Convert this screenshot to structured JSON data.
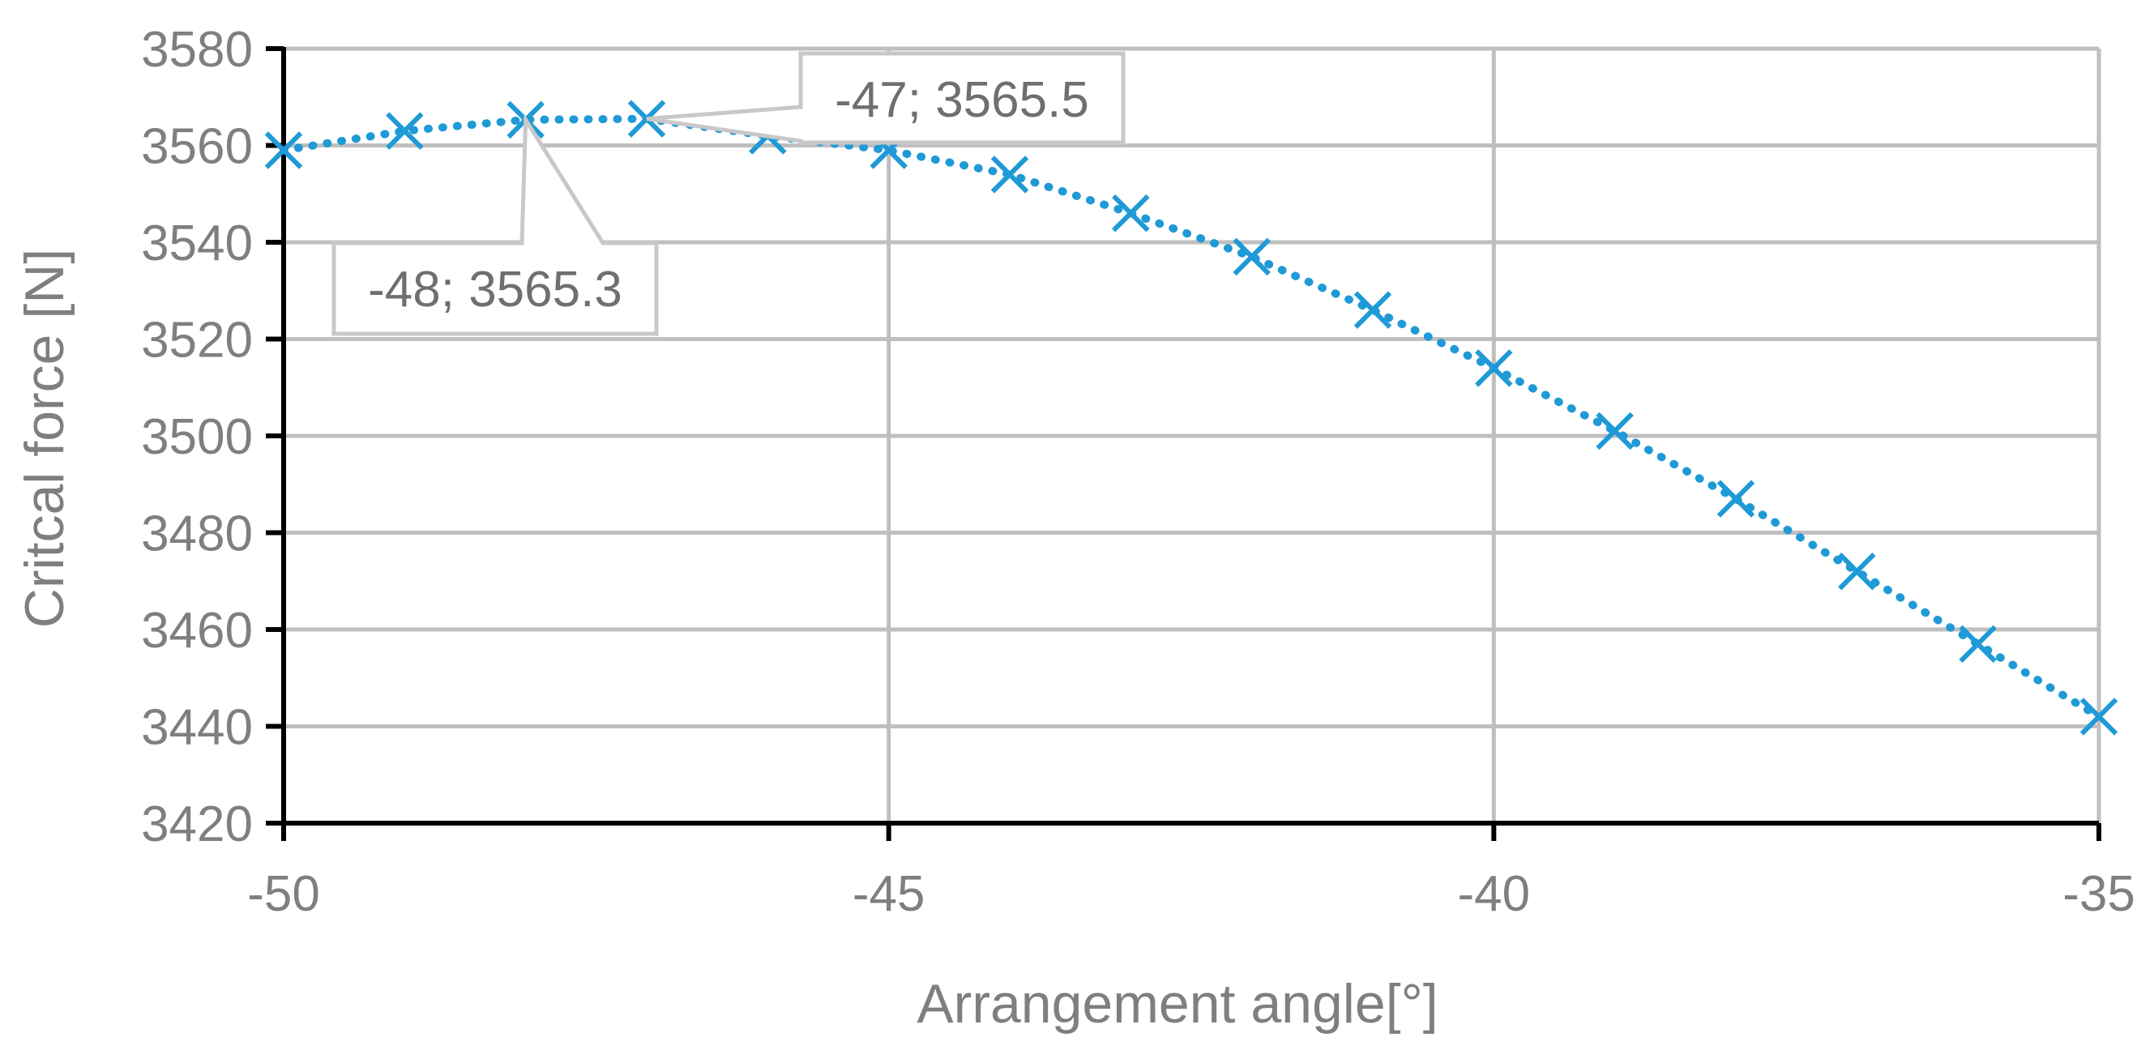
{
  "chart_data": {
    "type": "scatter",
    "title": "",
    "xlabel": "Arrangement angle[°]",
    "ylabel": "Critcal force [N]",
    "xlim": [
      -50,
      -35
    ],
    "ylim": [
      3420,
      3580
    ],
    "x_ticks": [
      -50,
      -45,
      -40,
      -35
    ],
    "x_tick_labels": [
      "-50",
      "-45",
      "-40",
      "-35"
    ],
    "y_ticks": [
      3420,
      3440,
      3460,
      3480,
      3500,
      3520,
      3540,
      3560,
      3580
    ],
    "y_tick_labels": [
      "3420",
      "3440",
      "3460",
      "3480",
      "3500",
      "3520",
      "3540",
      "3560",
      "3580"
    ],
    "grid": true,
    "legend": "none",
    "series": [
      {
        "marker": "x",
        "line": "dotted",
        "color": "#1f9ad6",
        "x": [
          -50,
          -49,
          -48,
          -47,
          -46,
          -45,
          -44,
          -43,
          -42,
          -41,
          -40,
          -39,
          -38,
          -37,
          -36,
          -35
        ],
        "y": [
          3559,
          3563,
          3565.3,
          3565.5,
          3562,
          3559,
          3554,
          3546,
          3537,
          3526,
          3514,
          3501,
          3487,
          3472,
          3457,
          3442
        ]
      }
    ],
    "annotations": [
      {
        "x": -48,
        "y": 3565.3,
        "text": "-48; 3565.3"
      },
      {
        "x": -47,
        "y": 3565.5,
        "text": "-47; 3565.5"
      }
    ],
    "colors": {
      "series": "#1f9ad6",
      "grid": "#bfbfbf",
      "axis": "#000000",
      "text": "#7f7f7f",
      "callout_border": "#c8c8c8"
    }
  }
}
